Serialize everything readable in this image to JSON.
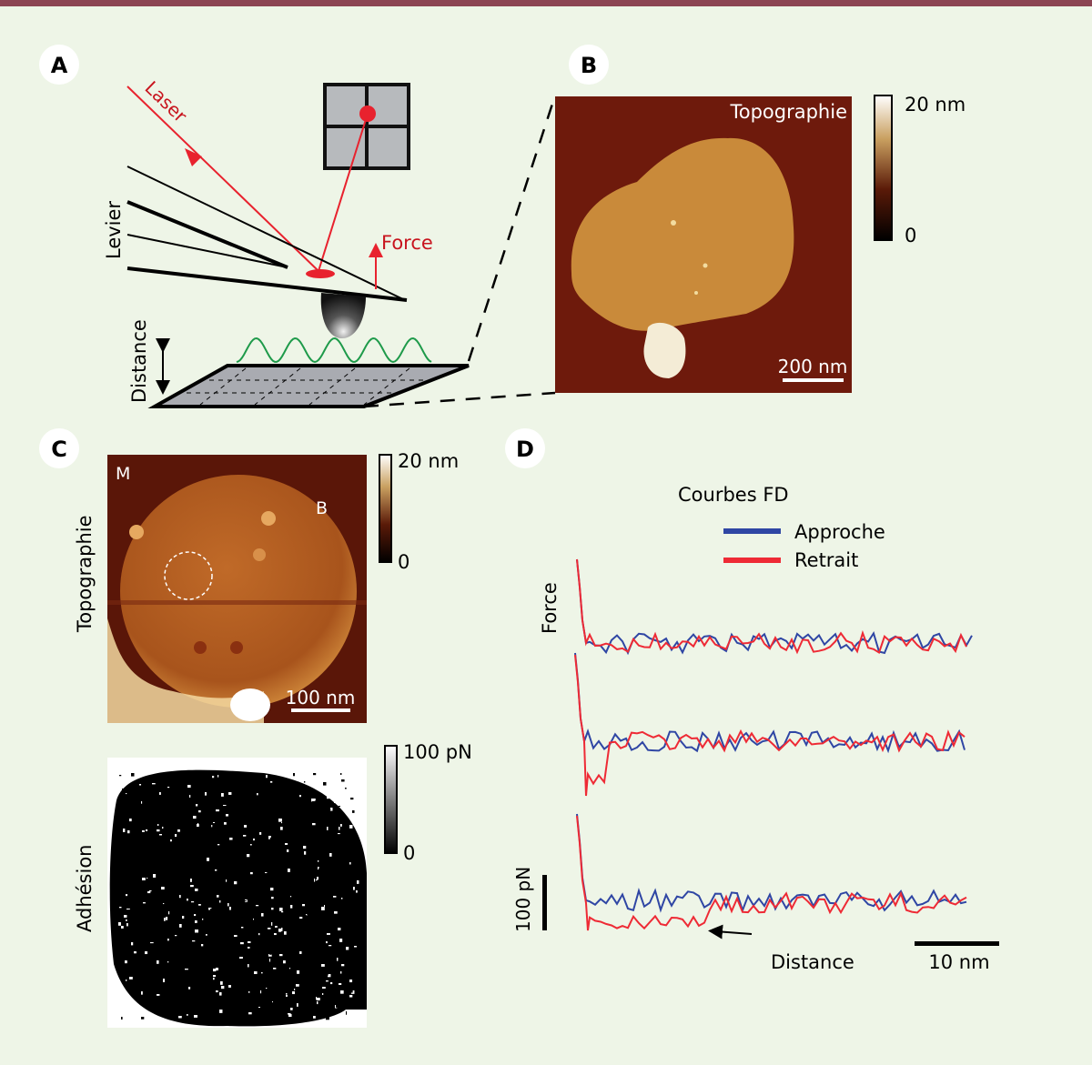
{
  "panels": {
    "a": {
      "badge": "A",
      "laser": "Laser",
      "force": "Force",
      "lever": "Levier",
      "distance": "Distance"
    },
    "b": {
      "badge": "B",
      "title": "Topographie",
      "colorbar_max": "20 nm",
      "colorbar_min": "0",
      "scale": "200 nm"
    },
    "c": {
      "badge": "C",
      "topo_label": "Topographie",
      "topo_colorbar_max": "20 nm",
      "topo_colorbar_min": "0",
      "marker_m": "M",
      "marker_b": "B",
      "topo_scale": "100 nm",
      "adh_label": "Adhésion",
      "adh_colorbar_max": "100 pN",
      "adh_colorbar_min": "0"
    },
    "d": {
      "badge": "D",
      "title": "Courbes FD",
      "legend": [
        {
          "label": "Approche",
          "color": "#2f46a4"
        },
        {
          "label": "Retrait",
          "color": "#ee2a35"
        }
      ],
      "ylabel": "Force",
      "xlabel": "Distance",
      "force_scale": "100 pN",
      "distance_scale": "10 nm"
    }
  },
  "colors": {
    "accent_bar": "#8c4553",
    "background": "#eef5e7",
    "laser": "#e8222e",
    "wave": "#1e9a4a"
  }
}
